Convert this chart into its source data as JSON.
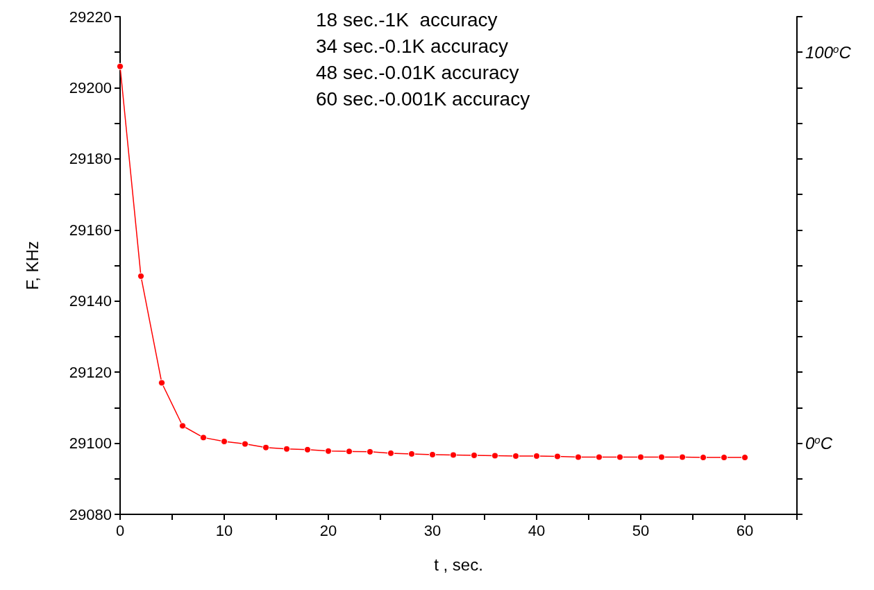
{
  "chart_data": {
    "type": "line",
    "xlabel": "t , sec.",
    "ylabel": "F, KHz",
    "annotations": [
      "18 sec.-1K  accuracy",
      "34 sec.-0.1K accuracy",
      "48 sec.-0.01K accuracy",
      "60 sec.-0.001K accuracy"
    ],
    "x": [
      0,
      2,
      4,
      6,
      8,
      10,
      12,
      14,
      16,
      18,
      20,
      22,
      24,
      26,
      28,
      30,
      32,
      34,
      36,
      38,
      40,
      42,
      44,
      46,
      48,
      50,
      52,
      54,
      56,
      58,
      60
    ],
    "series": [
      {
        "color": "#ff0000",
        "values": [
          29206,
          29147,
          29117,
          29104.9,
          29101.6,
          29100.5,
          29099.8,
          29098.8,
          29098.4,
          29098.2,
          29097.8,
          29097.7,
          29097.6,
          29097.2,
          29097.0,
          29096.8,
          29096.7,
          29096.6,
          29096.5,
          29096.4,
          29096.4,
          29096.3,
          29096.1,
          29096.1,
          29096.1,
          29096.1,
          29096.1,
          29096.1,
          29096.0,
          29096.0,
          29096.0
        ]
      }
    ],
    "marker": "circle",
    "line_style": "solid",
    "xlim": [
      0,
      65
    ],
    "xticks": [
      0,
      {
        "value": 5,
        "label": null
      },
      10,
      {
        "value": 15,
        "label": null
      },
      20,
      {
        "value": 25,
        "label": null
      },
      30,
      {
        "value": 35,
        "label": null
      },
      40,
      {
        "value": 45,
        "label": null
      },
      50,
      {
        "value": 55,
        "label": null
      },
      60,
      {
        "value": 65,
        "label": null
      }
    ],
    "ylim": [
      29080,
      29220
    ],
    "yticks": [
      29080,
      {
        "value": 29090,
        "label": null
      },
      29100,
      {
        "value": 29110,
        "label": null
      },
      29120,
      {
        "value": 29130,
        "label": null
      },
      29140,
      {
        "value": 29150,
        "label": null
      },
      29160,
      {
        "value": 29170,
        "label": null
      },
      29180,
      {
        "value": 29190,
        "label": null
      },
      29200,
      {
        "value": 29210,
        "label": null
      },
      29220
    ],
    "y2lim": [
      -18.18,
      109.09
    ],
    "y2ticks": [
      {
        "value": -18.18,
        "label": null
      },
      {
        "value": -9.09,
        "label": null
      },
      {
        "value": 0,
        "label": "0$^{o}$C"
      },
      {
        "value": 9.09,
        "label": null
      },
      {
        "value": 18.18,
        "label": null
      },
      {
        "value": 27.27,
        "label": null
      },
      {
        "value": 36.36,
        "label": null
      },
      {
        "value": 45.45,
        "label": null
      },
      {
        "value": 54.55,
        "label": null
      },
      {
        "value": 63.64,
        "label": null
      },
      {
        "value": 72.73,
        "label": null
      },
      {
        "value": 81.82,
        "label": null
      },
      {
        "value": 90.91,
        "label": null
      },
      {
        "value": 100,
        "label": "100$^{o}$C"
      },
      {
        "value": 109.09,
        "label": null
      }
    ]
  }
}
